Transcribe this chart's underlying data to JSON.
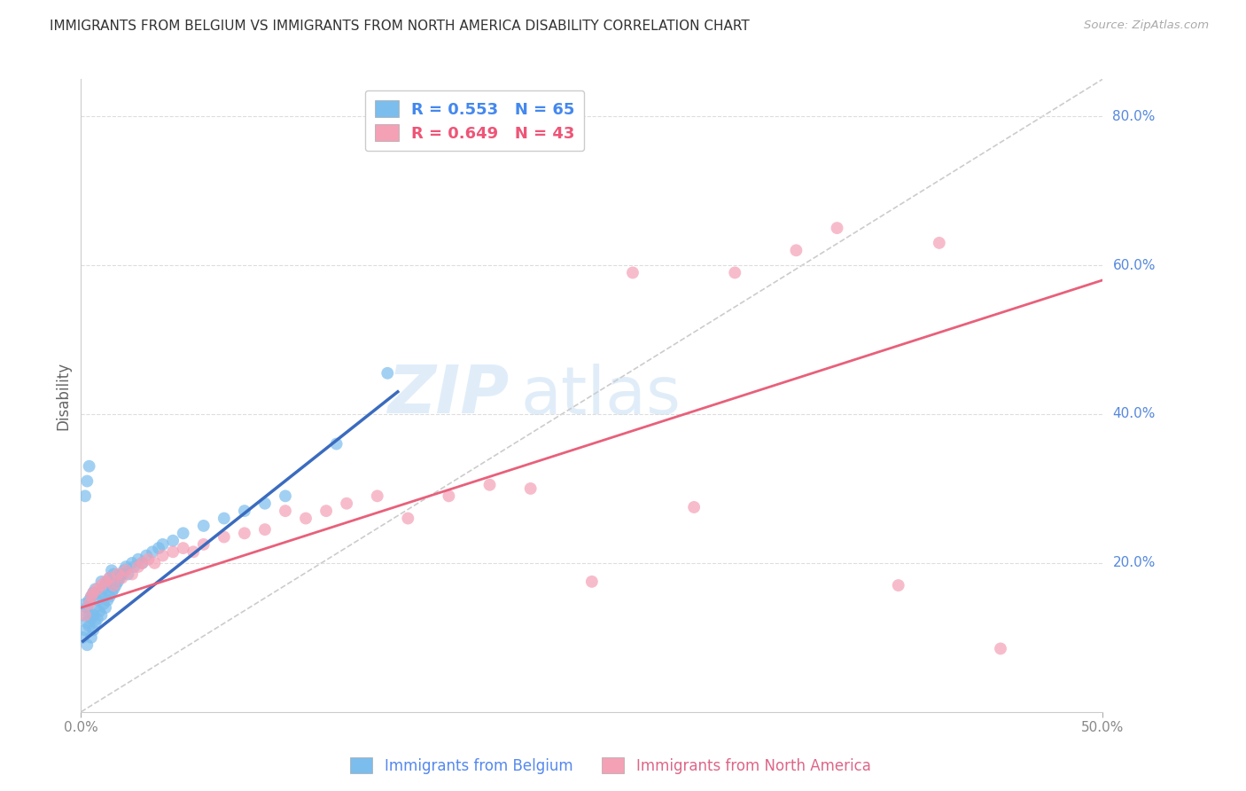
{
  "title": "IMMIGRANTS FROM BELGIUM VS IMMIGRANTS FROM NORTH AMERICA DISABILITY CORRELATION CHART",
  "source": "Source: ZipAtlas.com",
  "ylabel": "Disability",
  "ylabel_right_ticks": [
    "80.0%",
    "60.0%",
    "40.0%",
    "20.0%"
  ],
  "ylabel_right_vals": [
    0.8,
    0.6,
    0.4,
    0.2
  ],
  "x_min": 0.0,
  "x_max": 0.5,
  "y_min": 0.0,
  "y_max": 0.85,
  "color_belgium": "#7bbded",
  "color_na": "#f4a0b5",
  "color_belgium_line": "#3a6bbf",
  "color_na_line": "#e8607a",
  "color_diag_line": "#cccccc",
  "watermark_zip": "ZIP",
  "watermark_atlas": "atlas",
  "belgium_scatter_x": [
    0.001,
    0.001,
    0.002,
    0.002,
    0.003,
    0.003,
    0.003,
    0.004,
    0.004,
    0.004,
    0.005,
    0.005,
    0.005,
    0.006,
    0.006,
    0.006,
    0.007,
    0.007,
    0.007,
    0.008,
    0.008,
    0.009,
    0.009,
    0.01,
    0.01,
    0.01,
    0.011,
    0.011,
    0.012,
    0.012,
    0.013,
    0.013,
    0.014,
    0.014,
    0.015,
    0.015,
    0.016,
    0.016,
    0.017,
    0.018,
    0.019,
    0.02,
    0.021,
    0.022,
    0.023,
    0.025,
    0.026,
    0.028,
    0.03,
    0.032,
    0.035,
    0.038,
    0.04,
    0.045,
    0.05,
    0.06,
    0.07,
    0.08,
    0.09,
    0.1,
    0.002,
    0.003,
    0.004,
    0.125,
    0.15
  ],
  "belgium_scatter_y": [
    0.1,
    0.13,
    0.11,
    0.145,
    0.09,
    0.12,
    0.14,
    0.115,
    0.13,
    0.15,
    0.1,
    0.125,
    0.155,
    0.11,
    0.13,
    0.16,
    0.12,
    0.14,
    0.165,
    0.125,
    0.15,
    0.135,
    0.16,
    0.13,
    0.155,
    0.175,
    0.145,
    0.165,
    0.14,
    0.17,
    0.15,
    0.175,
    0.155,
    0.18,
    0.16,
    0.19,
    0.165,
    0.185,
    0.17,
    0.175,
    0.18,
    0.185,
    0.19,
    0.195,
    0.185,
    0.2,
    0.195,
    0.205,
    0.2,
    0.21,
    0.215,
    0.22,
    0.225,
    0.23,
    0.24,
    0.25,
    0.26,
    0.27,
    0.28,
    0.29,
    0.29,
    0.31,
    0.33,
    0.36,
    0.455
  ],
  "na_scatter_x": [
    0.002,
    0.004,
    0.005,
    0.006,
    0.008,
    0.01,
    0.012,
    0.014,
    0.016,
    0.018,
    0.02,
    0.022,
    0.025,
    0.028,
    0.03,
    0.033,
    0.036,
    0.04,
    0.045,
    0.05,
    0.055,
    0.06,
    0.07,
    0.08,
    0.09,
    0.1,
    0.11,
    0.12,
    0.13,
    0.145,
    0.16,
    0.18,
    0.2,
    0.22,
    0.25,
    0.27,
    0.3,
    0.32,
    0.35,
    0.37,
    0.4,
    0.42,
    0.45
  ],
  "na_scatter_y": [
    0.13,
    0.145,
    0.155,
    0.16,
    0.165,
    0.17,
    0.175,
    0.18,
    0.17,
    0.185,
    0.18,
    0.19,
    0.185,
    0.195,
    0.2,
    0.205,
    0.2,
    0.21,
    0.215,
    0.22,
    0.215,
    0.225,
    0.235,
    0.24,
    0.245,
    0.27,
    0.26,
    0.27,
    0.28,
    0.29,
    0.26,
    0.29,
    0.305,
    0.3,
    0.175,
    0.59,
    0.275,
    0.59,
    0.62,
    0.65,
    0.17,
    0.63,
    0.085
  ],
  "belgium_line_x": [
    0.001,
    0.155
  ],
  "belgium_line_y": [
    0.095,
    0.43
  ],
  "na_line_x": [
    0.0,
    0.5
  ],
  "na_line_y": [
    0.14,
    0.58
  ],
  "diag_line_x": [
    0.0,
    0.5
  ],
  "diag_line_y": [
    0.0,
    0.85
  ]
}
